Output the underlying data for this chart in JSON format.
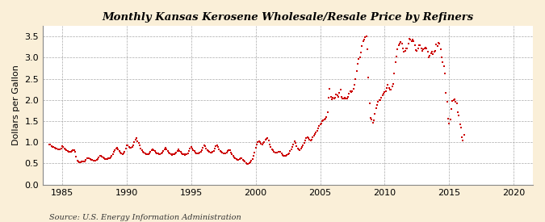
{
  "title": "Monthly Kansas Kerosene Wholesale/Resale Price by Refiners",
  "ylabel": "Dollars per Gallon",
  "source": "Source: U.S. Energy Information Administration",
  "bg_color": "#faefd8",
  "plot_bg_color": "#ffffff",
  "dot_color": "#cc0000",
  "dot_size": 3,
  "xlim": [
    1983.5,
    2021.5
  ],
  "ylim": [
    0.0,
    3.75
  ],
  "yticks": [
    0.0,
    0.5,
    1.0,
    1.5,
    2.0,
    2.5,
    3.0,
    3.5
  ],
  "xticks": [
    1985,
    1990,
    1995,
    2000,
    2005,
    2010,
    2015,
    2020
  ],
  "data": [
    [
      1984.0,
      0.946
    ],
    [
      1984.083,
      0.944
    ],
    [
      1984.167,
      0.906
    ],
    [
      1984.25,
      0.889
    ],
    [
      1984.333,
      0.883
    ],
    [
      1984.417,
      0.869
    ],
    [
      1984.5,
      0.855
    ],
    [
      1984.583,
      0.843
    ],
    [
      1984.667,
      0.837
    ],
    [
      1984.75,
      0.831
    ],
    [
      1984.833,
      0.836
    ],
    [
      1984.917,
      0.855
    ],
    [
      1985.0,
      0.9
    ],
    [
      1985.083,
      0.88
    ],
    [
      1985.167,
      0.86
    ],
    [
      1985.25,
      0.84
    ],
    [
      1985.333,
      0.815
    ],
    [
      1985.417,
      0.79
    ],
    [
      1985.5,
      0.775
    ],
    [
      1985.583,
      0.77
    ],
    [
      1985.667,
      0.775
    ],
    [
      1985.75,
      0.785
    ],
    [
      1985.833,
      0.805
    ],
    [
      1985.917,
      0.82
    ],
    [
      1986.0,
      0.779
    ],
    [
      1986.083,
      0.658
    ],
    [
      1986.167,
      0.565
    ],
    [
      1986.25,
      0.543
    ],
    [
      1986.333,
      0.529
    ],
    [
      1986.417,
      0.53
    ],
    [
      1986.5,
      0.538
    ],
    [
      1986.583,
      0.545
    ],
    [
      1986.667,
      0.548
    ],
    [
      1986.75,
      0.555
    ],
    [
      1986.833,
      0.59
    ],
    [
      1986.917,
      0.615
    ],
    [
      1987.0,
      0.63
    ],
    [
      1987.083,
      0.62
    ],
    [
      1987.167,
      0.6
    ],
    [
      1987.25,
      0.585
    ],
    [
      1987.333,
      0.578
    ],
    [
      1987.417,
      0.57
    ],
    [
      1987.5,
      0.565
    ],
    [
      1987.583,
      0.572
    ],
    [
      1987.667,
      0.58
    ],
    [
      1987.75,
      0.605
    ],
    [
      1987.833,
      0.64
    ],
    [
      1987.917,
      0.67
    ],
    [
      1988.0,
      0.68
    ],
    [
      1988.083,
      0.66
    ],
    [
      1988.167,
      0.64
    ],
    [
      1988.25,
      0.623
    ],
    [
      1988.333,
      0.61
    ],
    [
      1988.417,
      0.605
    ],
    [
      1988.5,
      0.605
    ],
    [
      1988.583,
      0.615
    ],
    [
      1988.667,
      0.625
    ],
    [
      1988.75,
      0.645
    ],
    [
      1988.833,
      0.68
    ],
    [
      1988.917,
      0.72
    ],
    [
      1989.0,
      0.77
    ],
    [
      1989.083,
      0.82
    ],
    [
      1989.167,
      0.86
    ],
    [
      1989.25,
      0.865
    ],
    [
      1989.333,
      0.84
    ],
    [
      1989.417,
      0.8
    ],
    [
      1989.5,
      0.76
    ],
    [
      1989.583,
      0.73
    ],
    [
      1989.667,
      0.72
    ],
    [
      1989.75,
      0.73
    ],
    [
      1989.833,
      0.78
    ],
    [
      1989.917,
      0.86
    ],
    [
      1990.0,
      0.93
    ],
    [
      1990.083,
      0.92
    ],
    [
      1990.167,
      0.89
    ],
    [
      1990.25,
      0.875
    ],
    [
      1990.333,
      0.87
    ],
    [
      1990.417,
      0.88
    ],
    [
      1990.5,
      0.92
    ],
    [
      1990.583,
      1.0
    ],
    [
      1990.667,
      1.07
    ],
    [
      1990.75,
      1.09
    ],
    [
      1990.833,
      1.03
    ],
    [
      1990.917,
      0.98
    ],
    [
      1991.0,
      0.92
    ],
    [
      1991.083,
      0.86
    ],
    [
      1991.167,
      0.81
    ],
    [
      1991.25,
      0.77
    ],
    [
      1991.333,
      0.748
    ],
    [
      1991.417,
      0.73
    ],
    [
      1991.5,
      0.72
    ],
    [
      1991.583,
      0.72
    ],
    [
      1991.667,
      0.725
    ],
    [
      1991.75,
      0.74
    ],
    [
      1991.833,
      0.78
    ],
    [
      1991.917,
      0.82
    ],
    [
      1992.0,
      0.84
    ],
    [
      1992.083,
      0.82
    ],
    [
      1992.167,
      0.795
    ],
    [
      1992.25,
      0.765
    ],
    [
      1992.333,
      0.745
    ],
    [
      1992.417,
      0.73
    ],
    [
      1992.5,
      0.72
    ],
    [
      1992.583,
      0.72
    ],
    [
      1992.667,
      0.73
    ],
    [
      1992.75,
      0.75
    ],
    [
      1992.833,
      0.79
    ],
    [
      1992.917,
      0.84
    ],
    [
      1993.0,
      0.87
    ],
    [
      1993.083,
      0.84
    ],
    [
      1993.167,
      0.8
    ],
    [
      1993.25,
      0.76
    ],
    [
      1993.333,
      0.735
    ],
    [
      1993.417,
      0.718
    ],
    [
      1993.5,
      0.708
    ],
    [
      1993.583,
      0.71
    ],
    [
      1993.667,
      0.715
    ],
    [
      1993.75,
      0.73
    ],
    [
      1993.833,
      0.76
    ],
    [
      1993.917,
      0.8
    ],
    [
      1994.0,
      0.83
    ],
    [
      1994.083,
      0.8
    ],
    [
      1994.167,
      0.77
    ],
    [
      1994.25,
      0.745
    ],
    [
      1994.333,
      0.725
    ],
    [
      1994.417,
      0.71
    ],
    [
      1994.5,
      0.705
    ],
    [
      1994.583,
      0.71
    ],
    [
      1994.667,
      0.72
    ],
    [
      1994.75,
      0.745
    ],
    [
      1994.833,
      0.79
    ],
    [
      1994.917,
      0.85
    ],
    [
      1995.0,
      0.88
    ],
    [
      1995.083,
      0.855
    ],
    [
      1995.167,
      0.82
    ],
    [
      1995.25,
      0.785
    ],
    [
      1995.333,
      0.76
    ],
    [
      1995.417,
      0.745
    ],
    [
      1995.5,
      0.74
    ],
    [
      1995.583,
      0.745
    ],
    [
      1995.667,
      0.76
    ],
    [
      1995.75,
      0.78
    ],
    [
      1995.833,
      0.82
    ],
    [
      1995.917,
      0.87
    ],
    [
      1996.0,
      0.93
    ],
    [
      1996.083,
      0.9
    ],
    [
      1996.167,
      0.858
    ],
    [
      1996.25,
      0.82
    ],
    [
      1996.333,
      0.79
    ],
    [
      1996.417,
      0.77
    ],
    [
      1996.5,
      0.758
    ],
    [
      1996.583,
      0.76
    ],
    [
      1996.667,
      0.77
    ],
    [
      1996.75,
      0.8
    ],
    [
      1996.833,
      0.85
    ],
    [
      1996.917,
      0.9
    ],
    [
      1997.0,
      0.92
    ],
    [
      1997.083,
      0.885
    ],
    [
      1997.167,
      0.84
    ],
    [
      1997.25,
      0.8
    ],
    [
      1997.333,
      0.77
    ],
    [
      1997.417,
      0.75
    ],
    [
      1997.5,
      0.74
    ],
    [
      1997.583,
      0.74
    ],
    [
      1997.667,
      0.745
    ],
    [
      1997.75,
      0.755
    ],
    [
      1997.833,
      0.785
    ],
    [
      1997.917,
      0.82
    ],
    [
      1998.0,
      0.808
    ],
    [
      1998.083,
      0.765
    ],
    [
      1998.167,
      0.715
    ],
    [
      1998.25,
      0.67
    ],
    [
      1998.333,
      0.64
    ],
    [
      1998.417,
      0.615
    ],
    [
      1998.5,
      0.6
    ],
    [
      1998.583,
      0.59
    ],
    [
      1998.667,
      0.59
    ],
    [
      1998.75,
      0.595
    ],
    [
      1998.833,
      0.62
    ],
    [
      1998.917,
      0.625
    ],
    [
      1999.0,
      0.59
    ],
    [
      1999.083,
      0.565
    ],
    [
      1999.167,
      0.54
    ],
    [
      1999.25,
      0.51
    ],
    [
      1999.333,
      0.49
    ],
    [
      1999.417,
      0.49
    ],
    [
      1999.5,
      0.505
    ],
    [
      1999.583,
      0.53
    ],
    [
      1999.667,
      0.56
    ],
    [
      1999.75,
      0.61
    ],
    [
      1999.833,
      0.68
    ],
    [
      1999.917,
      0.76
    ],
    [
      2000.0,
      0.87
    ],
    [
      2000.083,
      0.95
    ],
    [
      2000.167,
      1.01
    ],
    [
      2000.25,
      1.03
    ],
    [
      2000.333,
      1.01
    ],
    [
      2000.417,
      0.97
    ],
    [
      2000.5,
      0.95
    ],
    [
      2000.583,
      0.975
    ],
    [
      2000.667,
      1.01
    ],
    [
      2000.75,
      1.06
    ],
    [
      2000.833,
      1.08
    ],
    [
      2000.917,
      1.1
    ],
    [
      2001.0,
      1.04
    ],
    [
      2001.083,
      0.95
    ],
    [
      2001.167,
      0.89
    ],
    [
      2001.25,
      0.84
    ],
    [
      2001.333,
      0.81
    ],
    [
      2001.417,
      0.78
    ],
    [
      2001.5,
      0.76
    ],
    [
      2001.583,
      0.76
    ],
    [
      2001.667,
      0.76
    ],
    [
      2001.75,
      0.77
    ],
    [
      2001.833,
      0.78
    ],
    [
      2001.917,
      0.77
    ],
    [
      2002.0,
      0.73
    ],
    [
      2002.083,
      0.7
    ],
    [
      2002.167,
      0.685
    ],
    [
      2002.25,
      0.68
    ],
    [
      2002.333,
      0.68
    ],
    [
      2002.417,
      0.69
    ],
    [
      2002.5,
      0.71
    ],
    [
      2002.583,
      0.74
    ],
    [
      2002.667,
      0.79
    ],
    [
      2002.75,
      0.84
    ],
    [
      2002.833,
      0.89
    ],
    [
      2002.917,
      0.94
    ],
    [
      2003.0,
      1.02
    ],
    [
      2003.083,
      0.98
    ],
    [
      2003.167,
      0.91
    ],
    [
      2003.25,
      0.85
    ],
    [
      2003.333,
      0.83
    ],
    [
      2003.417,
      0.82
    ],
    [
      2003.5,
      0.85
    ],
    [
      2003.583,
      0.89
    ],
    [
      2003.667,
      0.93
    ],
    [
      2003.75,
      0.98
    ],
    [
      2003.833,
      1.04
    ],
    [
      2003.917,
      1.09
    ],
    [
      2004.0,
      1.12
    ],
    [
      2004.083,
      1.09
    ],
    [
      2004.167,
      1.06
    ],
    [
      2004.25,
      1.05
    ],
    [
      2004.333,
      1.07
    ],
    [
      2004.417,
      1.11
    ],
    [
      2004.5,
      1.16
    ],
    [
      2004.583,
      1.19
    ],
    [
      2004.667,
      1.23
    ],
    [
      2004.75,
      1.28
    ],
    [
      2004.833,
      1.33
    ],
    [
      2004.917,
      1.38
    ],
    [
      2005.0,
      1.42
    ],
    [
      2005.083,
      1.45
    ],
    [
      2005.167,
      1.49
    ],
    [
      2005.25,
      1.52
    ],
    [
      2005.333,
      1.54
    ],
    [
      2005.417,
      1.56
    ],
    [
      2005.5,
      1.6
    ],
    [
      2005.583,
      1.7
    ],
    [
      2005.667,
      2.05
    ],
    [
      2005.75,
      2.27
    ],
    [
      2005.833,
      2.08
    ],
    [
      2005.917,
      2.02
    ],
    [
      2006.0,
      2.05
    ],
    [
      2006.083,
      2.04
    ],
    [
      2006.167,
      2.06
    ],
    [
      2006.25,
      2.12
    ],
    [
      2006.333,
      2.1
    ],
    [
      2006.417,
      2.08
    ],
    [
      2006.5,
      2.17
    ],
    [
      2006.583,
      2.24
    ],
    [
      2006.667,
      2.07
    ],
    [
      2006.75,
      2.03
    ],
    [
      2006.833,
      2.04
    ],
    [
      2006.917,
      2.05
    ],
    [
      2007.0,
      2.04
    ],
    [
      2007.083,
      2.03
    ],
    [
      2007.167,
      2.07
    ],
    [
      2007.25,
      2.15
    ],
    [
      2007.333,
      2.2
    ],
    [
      2007.417,
      2.19
    ],
    [
      2007.5,
      2.2
    ],
    [
      2007.583,
      2.27
    ],
    [
      2007.667,
      2.36
    ],
    [
      2007.75,
      2.49
    ],
    [
      2007.833,
      2.68
    ],
    [
      2007.917,
      2.86
    ],
    [
      2008.0,
      2.97
    ],
    [
      2008.083,
      3.01
    ],
    [
      2008.167,
      3.12
    ],
    [
      2008.25,
      3.28
    ],
    [
      2008.333,
      3.39
    ],
    [
      2008.417,
      3.43
    ],
    [
      2008.5,
      3.48
    ],
    [
      2008.583,
      3.51
    ],
    [
      2008.667,
      3.2
    ],
    [
      2008.75,
      2.53
    ],
    [
      2008.833,
      1.92
    ],
    [
      2008.917,
      1.57
    ],
    [
      2009.0,
      1.54
    ],
    [
      2009.083,
      1.46
    ],
    [
      2009.167,
      1.52
    ],
    [
      2009.25,
      1.68
    ],
    [
      2009.333,
      1.8
    ],
    [
      2009.417,
      1.89
    ],
    [
      2009.5,
      1.95
    ],
    [
      2009.583,
      1.99
    ],
    [
      2009.667,
      1.99
    ],
    [
      2009.75,
      2.06
    ],
    [
      2009.833,
      2.1
    ],
    [
      2009.917,
      2.14
    ],
    [
      2010.0,
      2.18
    ],
    [
      2010.083,
      2.2
    ],
    [
      2010.167,
      2.28
    ],
    [
      2010.25,
      2.35
    ],
    [
      2010.333,
      2.28
    ],
    [
      2010.417,
      2.24
    ],
    [
      2010.5,
      2.25
    ],
    [
      2010.583,
      2.31
    ],
    [
      2010.667,
      2.38
    ],
    [
      2010.75,
      2.62
    ],
    [
      2010.833,
      2.89
    ],
    [
      2010.917,
      3.02
    ],
    [
      2011.0,
      3.2
    ],
    [
      2011.083,
      3.29
    ],
    [
      2011.167,
      3.32
    ],
    [
      2011.25,
      3.37
    ],
    [
      2011.333,
      3.33
    ],
    [
      2011.417,
      3.22
    ],
    [
      2011.5,
      3.13
    ],
    [
      2011.583,
      3.15
    ],
    [
      2011.667,
      3.21
    ],
    [
      2011.75,
      3.22
    ],
    [
      2011.833,
      3.32
    ],
    [
      2011.917,
      3.45
    ],
    [
      2012.0,
      3.42
    ],
    [
      2012.083,
      3.38
    ],
    [
      2012.167,
      3.43
    ],
    [
      2012.25,
      3.38
    ],
    [
      2012.333,
      3.29
    ],
    [
      2012.417,
      3.18
    ],
    [
      2012.5,
      3.16
    ],
    [
      2012.583,
      3.21
    ],
    [
      2012.667,
      3.29
    ],
    [
      2012.75,
      3.3
    ],
    [
      2012.833,
      3.22
    ],
    [
      2012.917,
      3.16
    ],
    [
      2013.0,
      3.2
    ],
    [
      2013.083,
      3.22
    ],
    [
      2013.167,
      3.23
    ],
    [
      2013.25,
      3.22
    ],
    [
      2013.333,
      3.13
    ],
    [
      2013.417,
      3.01
    ],
    [
      2013.5,
      3.04
    ],
    [
      2013.583,
      3.11
    ],
    [
      2013.667,
      3.13
    ],
    [
      2013.75,
      3.08
    ],
    [
      2013.833,
      3.14
    ],
    [
      2013.917,
      3.16
    ],
    [
      2014.0,
      3.31
    ],
    [
      2014.083,
      3.28
    ],
    [
      2014.167,
      3.34
    ],
    [
      2014.25,
      3.32
    ],
    [
      2014.333,
      3.19
    ],
    [
      2014.417,
      3.0
    ],
    [
      2014.5,
      2.9
    ],
    [
      2014.583,
      2.8
    ],
    [
      2014.667,
      2.62
    ],
    [
      2014.75,
      2.16
    ],
    [
      2014.833,
      1.95
    ],
    [
      2014.917,
      1.56
    ],
    [
      2015.0,
      1.45
    ],
    [
      2015.083,
      1.53
    ],
    [
      2015.167,
      1.78
    ],
    [
      2015.25,
      1.98
    ],
    [
      2015.333,
      2.0
    ],
    [
      2015.417,
      2.01
    ],
    [
      2015.5,
      1.96
    ],
    [
      2015.583,
      1.92
    ],
    [
      2015.667,
      1.71
    ],
    [
      2015.75,
      1.63
    ],
    [
      2015.833,
      1.43
    ],
    [
      2015.917,
      1.34
    ],
    [
      2016.0,
      1.11
    ],
    [
      2016.083,
      1.04
    ],
    [
      2016.167,
      1.18
    ]
  ]
}
